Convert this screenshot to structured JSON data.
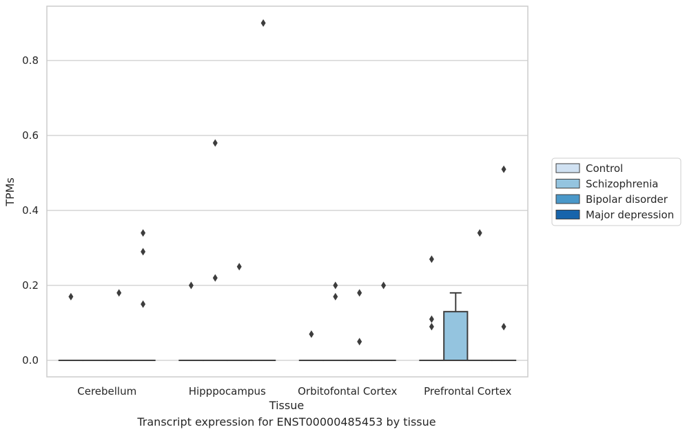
{
  "caption": "Transcript expression for ENST00000485453 by tissue",
  "chart_data": {
    "type": "box",
    "xlabel": "Tissue",
    "ylabel": "TPMs",
    "ylim": [
      -0.044,
      0.945
    ],
    "yticks": [
      "0.0",
      "0.2",
      "0.4",
      "0.6",
      "0.8"
    ],
    "ytick_values": [
      0,
      0.2,
      0.4,
      0.6,
      0.8
    ],
    "grid": "horizontal",
    "legend_position": "right",
    "categories": [
      "Cerebellum",
      "Hipppocampus",
      "Orbitofontal Cortex",
      "Prefrontal Cortex"
    ],
    "series": [
      {
        "name": "Control",
        "color": "#d0e1f2",
        "boxes": [
          {
            "q1": 0,
            "median": 0,
            "q3": 0,
            "whisker_low": 0,
            "whisker_high": 0,
            "outliers": [
              0.17
            ]
          },
          {
            "q1": 0,
            "median": 0,
            "q3": 0,
            "whisker_low": 0,
            "whisker_high": 0,
            "outliers": [
              0.2
            ]
          },
          {
            "q1": 0,
            "median": 0,
            "q3": 0,
            "whisker_low": 0,
            "whisker_high": 0,
            "outliers": [
              0.07
            ]
          },
          {
            "q1": 0,
            "median": 0,
            "q3": 0,
            "whisker_low": 0,
            "whisker_high": 0,
            "outliers": [
              0.27,
              0.11,
              0.09
            ]
          }
        ]
      },
      {
        "name": "Schizophrenia",
        "color": "#94c4df",
        "boxes": [
          {
            "q1": 0,
            "median": 0,
            "q3": 0,
            "whisker_low": 0,
            "whisker_high": 0,
            "outliers": []
          },
          {
            "q1": 0,
            "median": 0,
            "q3": 0,
            "whisker_low": 0,
            "whisker_high": 0,
            "outliers": [
              0.58,
              0.22
            ]
          },
          {
            "q1": 0,
            "median": 0,
            "q3": 0,
            "whisker_low": 0,
            "whisker_high": 0,
            "outliers": [
              0.2,
              0.17
            ]
          },
          {
            "q1": 0,
            "median": 0,
            "q3": 0.13,
            "whisker_low": 0,
            "whisker_high": 0.18,
            "outliers": []
          }
        ]
      },
      {
        "name": "Bipolar disorder",
        "color": "#4a98c9",
        "boxes": [
          {
            "q1": 0,
            "median": 0,
            "q3": 0,
            "whisker_low": 0,
            "whisker_high": 0,
            "outliers": [
              0.18
            ]
          },
          {
            "q1": 0,
            "median": 0,
            "q3": 0,
            "whisker_low": 0,
            "whisker_high": 0,
            "outliers": [
              0.25
            ]
          },
          {
            "q1": 0,
            "median": 0,
            "q3": 0,
            "whisker_low": 0,
            "whisker_high": 0,
            "outliers": [
              0.18,
              0.05
            ]
          },
          {
            "q1": 0,
            "median": 0,
            "q3": 0,
            "whisker_low": 0,
            "whisker_high": 0,
            "outliers": [
              0.34
            ]
          }
        ]
      },
      {
        "name": "Major depression",
        "color": "#1764ab",
        "boxes": [
          {
            "q1": 0,
            "median": 0,
            "q3": 0,
            "whisker_low": 0,
            "whisker_high": 0,
            "outliers": [
              0.34,
              0.29,
              0.15
            ]
          },
          {
            "q1": 0,
            "median": 0,
            "q3": 0,
            "whisker_low": 0,
            "whisker_high": 0,
            "outliers": [
              0.9
            ]
          },
          {
            "q1": 0,
            "median": 0,
            "q3": 0,
            "whisker_low": 0,
            "whisker_high": 0,
            "outliers": [
              0.2
            ]
          },
          {
            "q1": 0,
            "median": 0,
            "q3": 0,
            "whisker_low": 0,
            "whisker_high": 0,
            "outliers": [
              0.51,
              0.09
            ]
          }
        ]
      }
    ]
  }
}
